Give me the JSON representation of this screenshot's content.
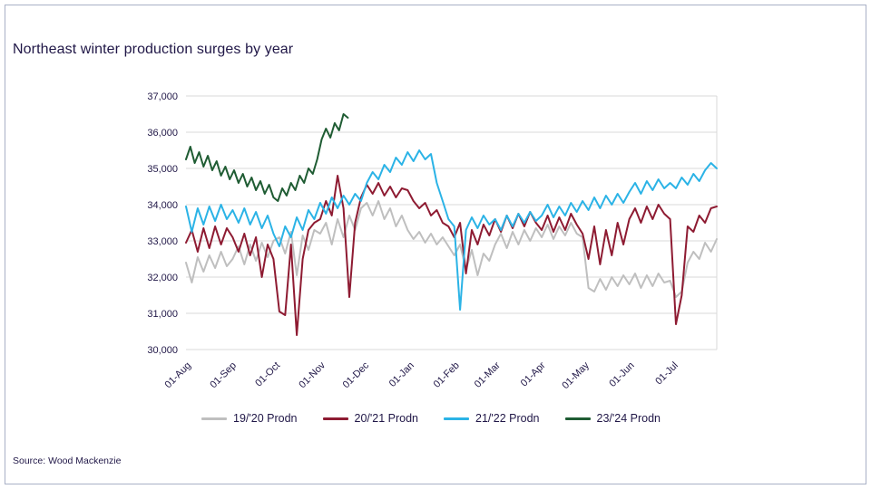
{
  "page": {
    "source_note": "Source: Wood Mackenzie"
  },
  "colors": {
    "title_text": "#201747",
    "axis_text": "#201747",
    "gridline": "#D9D9D9",
    "frame_border": "#a9b0c6"
  },
  "chart_data": {
    "type": "line",
    "title": "Northeast winter production surges by year",
    "ylabel": "",
    "xlabel": "",
    "ylim": [
      30000,
      37000
    ],
    "y_tick_step": 1000,
    "x_domain_days": [
      0,
      364
    ],
    "grid": "horizontal",
    "legend_position": "bottom",
    "x_ticks": [
      {
        "day": 0,
        "label": "01-Aug"
      },
      {
        "day": 31,
        "label": "01-Sep"
      },
      {
        "day": 61,
        "label": "01-Oct"
      },
      {
        "day": 92,
        "label": "01-Nov"
      },
      {
        "day": 122,
        "label": "01-Dec"
      },
      {
        "day": 153,
        "label": "01-Jan"
      },
      {
        "day": 184,
        "label": "01-Feb"
      },
      {
        "day": 212,
        "label": "01-Mar"
      },
      {
        "day": 243,
        "label": "01-Apr"
      },
      {
        "day": 273,
        "label": "01-May"
      },
      {
        "day": 304,
        "label": "01-Jun"
      },
      {
        "day": 334,
        "label": "01-Jul"
      }
    ],
    "series": [
      {
        "name": "19/'20 Prodn",
        "color": "#BFBFBF",
        "x_start": 0,
        "x_step": 4,
        "values": [
          32400,
          31850,
          32550,
          32150,
          32600,
          32250,
          32700,
          32300,
          32500,
          32850,
          32350,
          32900,
          32450,
          32950,
          32550,
          33000,
          33100,
          32650,
          33250,
          32050,
          33150,
          32750,
          33300,
          33200,
          33500,
          32900,
          33600,
          33100,
          33700,
          33300,
          33900,
          34050,
          33700,
          34100,
          33600,
          33900,
          33400,
          33700,
          33300,
          33050,
          33250,
          32950,
          33200,
          32900,
          33100,
          32850,
          32600,
          32900,
          32200,
          32750,
          32050,
          32650,
          32450,
          32900,
          33200,
          32800,
          33250,
          32900,
          33300,
          33000,
          33350,
          33100,
          33450,
          33050,
          33400,
          33150,
          33500,
          33200,
          33100,
          31700,
          31600,
          31950,
          31650,
          32000,
          31750,
          32050,
          31800,
          32100,
          31700,
          32050,
          31750,
          32100,
          31850,
          31900,
          31450,
          31600,
          32400,
          32700,
          32500,
          32950,
          32700,
          33050
        ]
      },
      {
        "name": "20/'21 Prodn",
        "color": "#8E1B32",
        "x_start": 0,
        "x_step": 4,
        "values": [
          32950,
          33300,
          32700,
          33350,
          32800,
          33400,
          32900,
          33350,
          33100,
          32700,
          33200,
          32600,
          33100,
          32000,
          32900,
          32500,
          31050,
          30950,
          32900,
          30400,
          32500,
          33300,
          33500,
          33600,
          34100,
          33700,
          34800,
          33900,
          31450,
          33500,
          34200,
          34550,
          34300,
          34600,
          34250,
          34500,
          34200,
          34450,
          34400,
          34100,
          33900,
          34050,
          33700,
          33850,
          33500,
          33400,
          33100,
          33500,
          32100,
          33300,
          32900,
          33450,
          33150,
          33600,
          33250,
          33700,
          33350,
          33750,
          33400,
          33800,
          33500,
          33300,
          33700,
          33250,
          33650,
          33300,
          33750,
          33450,
          33200,
          32500,
          33400,
          32350,
          33300,
          32600,
          33500,
          32900,
          33600,
          33900,
          33500,
          33950,
          33600,
          34000,
          33750,
          33600,
          30700,
          31500,
          33400,
          33250,
          33700,
          33500,
          33900,
          33950
        ]
      },
      {
        "name": "21/'22 Prodn",
        "color": "#2BB3E6",
        "x_start": 0,
        "x_step": 4,
        "values": [
          33950,
          33250,
          33900,
          33450,
          33950,
          33550,
          34000,
          33600,
          33850,
          33500,
          33900,
          33450,
          33800,
          33350,
          33700,
          33200,
          32850,
          33400,
          33100,
          33650,
          33300,
          33850,
          33600,
          34050,
          33750,
          34200,
          33900,
          34250,
          34000,
          34300,
          34100,
          34600,
          34900,
          34700,
          35100,
          34900,
          35300,
          35100,
          35450,
          35200,
          35500,
          35250,
          35400,
          34600,
          34100,
          33600,
          33400,
          31100,
          33300,
          33650,
          33350,
          33700,
          33450,
          33600,
          33300,
          33700,
          33400,
          33750,
          33500,
          33800,
          33550,
          33700,
          34000,
          33650,
          33950,
          33700,
          34050,
          33800,
          34100,
          33850,
          34200,
          33900,
          34250,
          34000,
          34300,
          34050,
          34350,
          34600,
          34300,
          34650,
          34400,
          34700,
          34450,
          34600,
          34450,
          34750,
          34550,
          34850,
          34650,
          34950,
          35150,
          35000
        ]
      },
      {
        "name": "23/'24 Prodn",
        "color": "#1F5C33",
        "x_start": 0,
        "x_step": 3,
        "values": [
          35250,
          35600,
          35150,
          35450,
          35050,
          35350,
          34950,
          35200,
          34800,
          35050,
          34700,
          34950,
          34600,
          34850,
          34500,
          34750,
          34400,
          34650,
          34300,
          34550,
          34200,
          34100,
          34450,
          34250,
          34600,
          34400,
          34800,
          34600,
          35000,
          34850,
          35250,
          35800,
          36100,
          35850,
          36250,
          36050,
          36500,
          36400
        ]
      }
    ]
  }
}
